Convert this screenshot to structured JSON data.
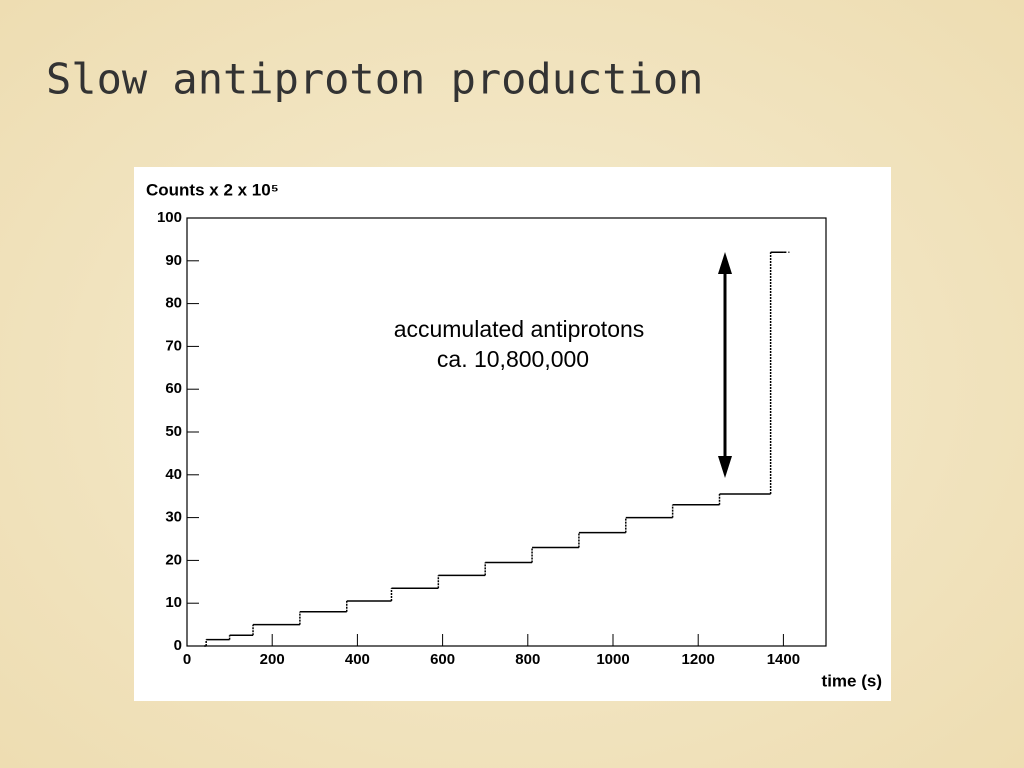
{
  "chart_data": {
    "type": "line",
    "step": "post",
    "title": "Slow antiproton production",
    "ylabel": "Counts x 2 x 10⁵",
    "xlabel": "time (s)",
    "annotation": [
      "accumulated antiprotons",
      "ca. 10,800,000"
    ],
    "x": [
      40,
      45,
      100,
      155,
      265,
      375,
      480,
      590,
      700,
      810,
      920,
      1030,
      1140,
      1250,
      1370,
      1400
    ],
    "series": [
      {
        "color": "#000000",
        "values": [
          0,
          1.5,
          2.5,
          5,
          8,
          10.5,
          13.5,
          16.5,
          19.5,
          23,
          26.5,
          30,
          33,
          35.5,
          92,
          92
        ]
      }
    ],
    "xlim": [
      0,
      1500
    ],
    "xticks": [
      0,
      200,
      400,
      600,
      800,
      1000,
      1200,
      1400
    ],
    "ylim": [
      0,
      100
    ],
    "yticks": [
      0,
      10,
      20,
      30,
      40,
      50,
      60,
      70,
      80,
      90,
      100
    ],
    "grid": false
  }
}
